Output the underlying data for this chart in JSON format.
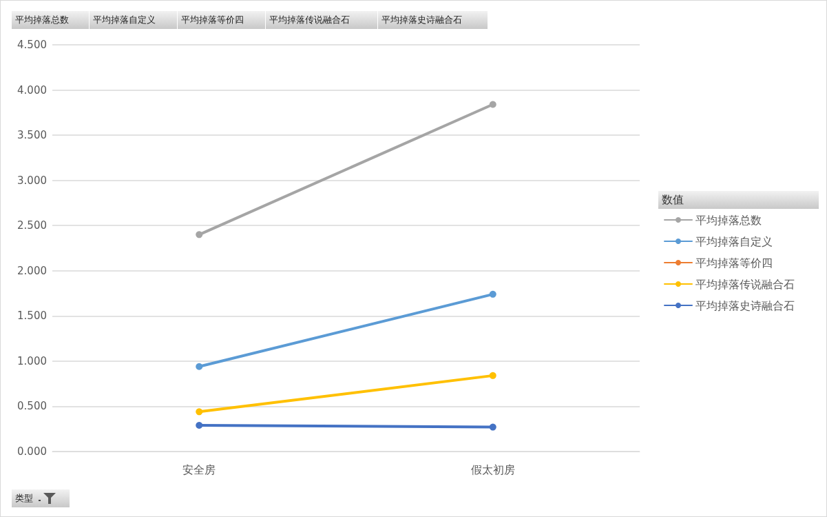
{
  "chart_data": {
    "type": "line",
    "xlabel": "类型",
    "legend_title": "数值",
    "annotations": [
      "平均掉落总数",
      "平均掉落自定义",
      "平均掉落等价四",
      "平均掉落传说融合石",
      "平均掉落史诗融合石"
    ],
    "categories": [
      "安全房",
      "假太初房"
    ],
    "series": [
      {
        "name": "平均掉落总数",
        "color": "#a5a5a5",
        "values": [
          2.4,
          3.84
        ]
      },
      {
        "name": "平均掉落自定义",
        "color": "#5b9bd5",
        "values": [
          0.94,
          1.74
        ]
      },
      {
        "name": "平均掉落等价四",
        "color": "#ed7d31",
        "values": [
          null,
          null
        ]
      },
      {
        "name": "平均掉落传说融合石",
        "color": "#ffc000",
        "values": [
          0.44,
          0.84
        ]
      },
      {
        "name": "平均掉落史诗融合石",
        "color": "#4472c4",
        "values": [
          0.29,
          0.27
        ]
      }
    ],
    "ylim": [
      0,
      4.5
    ],
    "yticks": [
      {
        "value": 0,
        "label": "0.000"
      },
      {
        "value": 0.5,
        "label": "0.500"
      },
      {
        "value": 1,
        "label": "1.000"
      },
      {
        "value": 1.5,
        "label": "1.500"
      },
      {
        "value": 2,
        "label": "2.000"
      },
      {
        "value": 2.5,
        "label": "2.500"
      },
      {
        "value": 3,
        "label": "3.000"
      },
      {
        "value": 3.5,
        "label": "3.500"
      },
      {
        "value": 4,
        "label": "4.000"
      },
      {
        "value": 4.5,
        "label": "4.500"
      }
    ],
    "grid": "y",
    "legend": "right",
    "marker": "circle",
    "line_style": "solid"
  }
}
